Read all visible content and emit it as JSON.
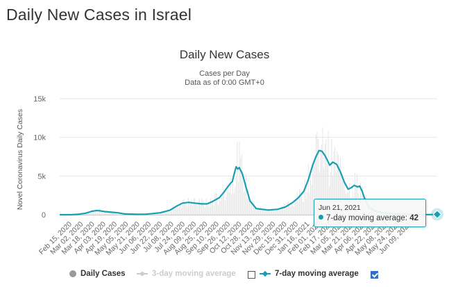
{
  "page_title": "Daily New Cases in Israel",
  "legend": {
    "daily_cases": "Daily Cases",
    "three_day": "3-day moving average",
    "seven_day": "7-day moving average"
  },
  "tooltip": {
    "date": "Jun 21, 2021",
    "label": "7-day moving average: ",
    "value": "42"
  },
  "colors": {
    "bars": "#e3e3e3",
    "line": "#16a0b2",
    "grid": "#e6e6e6",
    "checkbox_checked": "#2f6fc9"
  },
  "chart_data": {
    "type": "line",
    "title": "Daily New Cases",
    "subtitle": "Cases per Day",
    "subtitle2": "Data as of 0:00 GMT+0",
    "ylabel": "Novel Coronavirus Daily Cases",
    "xlabel": "",
    "ylim": [
      0,
      15000
    ],
    "yticks": [
      0,
      5000,
      10000,
      15000
    ],
    "ytick_labels": [
      "0",
      "5k",
      "10k",
      "15k"
    ],
    "x_tick_labels": [
      "Feb 15, 2020",
      "Mar 02, 2020",
      "Mar 18, 2020",
      "Apr 03, 2020",
      "Apr 19, 2020",
      "May 05, 2020",
      "May 21, 2020",
      "Jun 06, 2020",
      "Jun 22, 2020",
      "Jul 08, 2020",
      "Jul 24, 2020",
      "Aug 09, 2020",
      "Aug 25, 2020",
      "Sep 10, 2020",
      "Sep 26, 2020",
      "Oct 12, 2020",
      "Oct 28, 2020",
      "Nov 13, 2020",
      "Nov 29, 2020",
      "Dec 15, 2020",
      "Dec 31, 2020",
      "Jan 16, 2021",
      "Feb 01, 2021",
      "Feb 17, 2021",
      "Mar 05, 2021",
      "Mar 21, 2021",
      "Apr 06, 2021",
      "Apr 22, 2021",
      "May 08, 2021",
      "May 24, 2021",
      "Jun 09, 2021"
    ],
    "grid": true,
    "legend_position": "bottom",
    "series": [
      {
        "name": "7-day moving average",
        "dates": [
          "2020-02-15",
          "2020-03-01",
          "2020-03-10",
          "2020-03-20",
          "2020-03-28",
          "2020-04-03",
          "2020-04-08",
          "2020-04-14",
          "2020-04-20",
          "2020-05-01",
          "2020-05-10",
          "2020-05-25",
          "2020-06-06",
          "2020-06-15",
          "2020-06-25",
          "2020-07-01",
          "2020-07-08",
          "2020-07-16",
          "2020-07-24",
          "2020-08-01",
          "2020-08-09",
          "2020-08-18",
          "2020-08-25",
          "2020-09-01",
          "2020-09-10",
          "2020-09-16",
          "2020-09-21",
          "2020-09-24",
          "2020-09-27",
          "2020-09-30",
          "2020-10-02",
          "2020-10-04",
          "2020-10-06",
          "2020-10-10",
          "2020-10-15",
          "2020-10-20",
          "2020-10-28",
          "2020-11-13",
          "2020-11-25",
          "2020-12-05",
          "2020-12-15",
          "2020-12-22",
          "2020-12-29",
          "2021-01-04",
          "2021-01-10",
          "2021-01-14",
          "2021-01-18",
          "2021-01-22",
          "2021-01-26",
          "2021-02-01",
          "2021-02-05",
          "2021-02-10",
          "2021-02-15",
          "2021-02-20",
          "2021-02-25",
          "2021-03-01",
          "2021-03-05",
          "2021-03-09",
          "2021-03-12",
          "2021-03-15",
          "2021-03-18",
          "2021-03-24",
          "2021-04-01",
          "2021-04-10",
          "2021-04-20",
          "2021-05-01",
          "2021-05-15",
          "2021-06-01",
          "2021-06-10",
          "2021-06-21"
        ],
        "values": [
          0,
          0,
          50,
          200,
          450,
          550,
          500,
          400,
          350,
          250,
          100,
          50,
          60,
          150,
          250,
          400,
          600,
          1100,
          1500,
          1600,
          1500,
          1400,
          1400,
          1700,
          2200,
          2900,
          3600,
          4000,
          4300,
          5500,
          6200,
          5900,
          6100,
          5300,
          3500,
          1800,
          800,
          600,
          700,
          1000,
          1600,
          2200,
          3000,
          4500,
          6500,
          7500,
          8300,
          8200,
          7600,
          6400,
          6800,
          6500,
          5500,
          4200,
          3300,
          3500,
          3800,
          3600,
          3700,
          3100,
          2200,
          900,
          500,
          250,
          150,
          80,
          40,
          20,
          15,
          42
        ]
      }
    ],
    "bars": {
      "name": "Daily Cases",
      "note": "daily values scatter around the 7-day average, peaks reaching about 11000"
    }
  }
}
